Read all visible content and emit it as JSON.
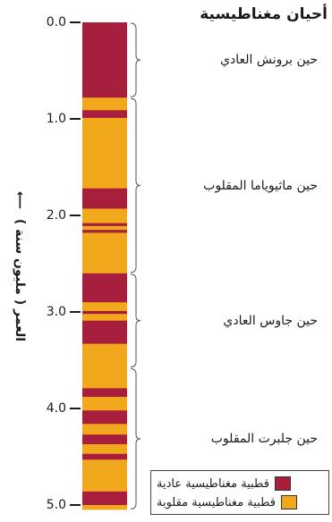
{
  "title": "أحيان مغناطيسية",
  "y_axis_label": "العمر ( مليون سنة )",
  "axis_arrow": "⟵",
  "colors": {
    "normal": "#a81f3d",
    "reversed": "#f2a81c",
    "bracket": "#555555"
  },
  "ticks": [
    {
      "value": 0.0,
      "label": "0.0"
    },
    {
      "value": 1.0,
      "label": "1.0"
    },
    {
      "value": 2.0,
      "label": "2.0"
    },
    {
      "value": 3.0,
      "label": "3.0"
    },
    {
      "value": 4.0,
      "label": "4.0"
    },
    {
      "value": 5.0,
      "label": "5.0"
    }
  ],
  "age_range": [
    0,
    5.05
  ],
  "chrons": [
    {
      "name": "حين برونش العادي",
      "start": 0.0,
      "end": 0.78
    },
    {
      "name": "حين ماثيوياما المقلوب",
      "start": 0.78,
      "end": 2.6
    },
    {
      "name": "حين جاوس العادي",
      "start": 2.6,
      "end": 3.58
    },
    {
      "name": "حين جلبرت المقلوب",
      "start": 3.58,
      "end": 5.05
    }
  ],
  "normal_intervals": [
    [
      0.0,
      0.78
    ],
    [
      0.91,
      0.99
    ],
    [
      1.72,
      1.93
    ],
    [
      2.08,
      2.11
    ],
    [
      2.15,
      2.18
    ],
    [
      2.6,
      2.9
    ],
    [
      2.99,
      3.02
    ],
    [
      3.09,
      3.33
    ],
    [
      3.79,
      3.88
    ],
    [
      4.02,
      4.16
    ],
    [
      4.27,
      4.37
    ],
    [
      4.47,
      4.53
    ],
    [
      4.86,
      5.0
    ]
  ],
  "legend": [
    {
      "key": "normal",
      "label": "قطبية مغناطيسية عادية"
    },
    {
      "key": "reversed",
      "label": "قطبية مغناطيسية مقلوبة"
    }
  ]
}
